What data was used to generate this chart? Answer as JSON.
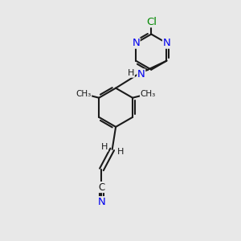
{
  "background_color": "#e8e8e8",
  "bond_color": "#1a1a1a",
  "nitrogen_color": "#0000ee",
  "chlorine_color": "#008800",
  "bond_width": 1.5,
  "fig_size": [
    3.0,
    3.0
  ],
  "dpi": 100,
  "xlim": [
    0,
    10
  ],
  "ylim": [
    0,
    10
  ]
}
